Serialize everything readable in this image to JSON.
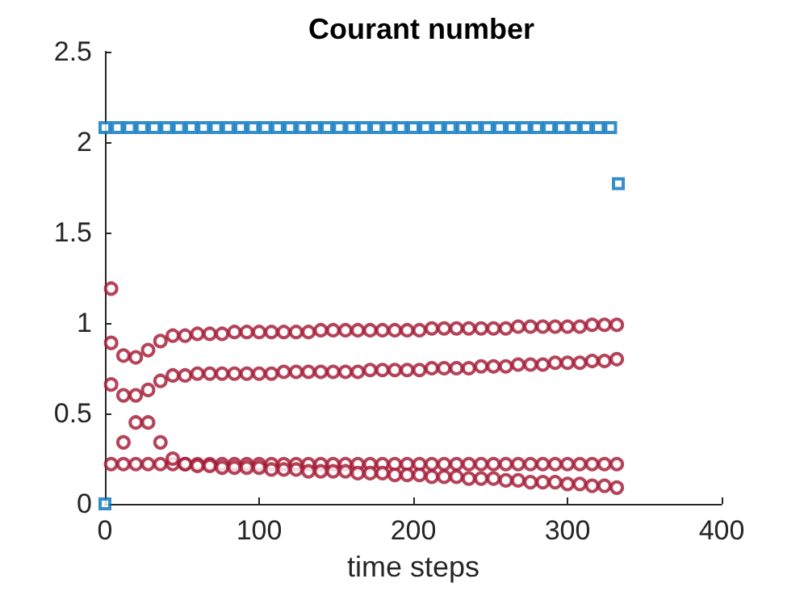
{
  "chart_data": {
    "type": "scatter",
    "title": "Courant number",
    "xlabel": "time steps",
    "x": [
      4,
      12,
      20,
      28,
      36,
      44,
      52,
      60,
      68,
      76,
      84,
      92,
      100,
      108,
      116,
      124,
      132,
      140,
      148,
      156,
      164,
      172,
      180,
      188,
      196,
      204,
      212,
      220,
      228,
      236,
      244,
      252,
      260,
      268,
      276,
      284,
      292,
      300,
      308,
      316,
      324,
      332
    ],
    "series": [
      {
        "color": "#0072bd",
        "marker": "square",
        "x": [
          0,
          8,
          16,
          24,
          32,
          40,
          48,
          56,
          64,
          72,
          80,
          88,
          96,
          104,
          112,
          120,
          128,
          136,
          144,
          152,
          160,
          168,
          176,
          184,
          192,
          200,
          208,
          216,
          224,
          232,
          240,
          248,
          256,
          264,
          272,
          280,
          288,
          296,
          304,
          312,
          320,
          328,
          333,
          0
        ],
        "values": [
          2.08,
          2.08,
          2.08,
          2.08,
          2.08,
          2.08,
          2.08,
          2.08,
          2.08,
          2.08,
          2.08,
          2.08,
          2.08,
          2.08,
          2.08,
          2.08,
          2.08,
          2.08,
          2.08,
          2.08,
          2.08,
          2.08,
          2.08,
          2.08,
          2.08,
          2.08,
          2.08,
          2.08,
          2.08,
          2.08,
          2.08,
          2.08,
          2.08,
          2.08,
          2.08,
          2.08,
          2.08,
          2.08,
          2.08,
          2.08,
          2.08,
          2.08,
          1.77,
          0
        ]
      },
      {
        "color": "#a2142f",
        "marker": "circle",
        "values": [
          0.89,
          0.82,
          0.81,
          0.85,
          0.9,
          0.93,
          0.93,
          0.94,
          0.94,
          0.94,
          0.95,
          0.95,
          0.95,
          0.95,
          0.95,
          0.95,
          0.95,
          0.96,
          0.96,
          0.96,
          0.96,
          0.96,
          0.96,
          0.96,
          0.96,
          0.96,
          0.97,
          0.97,
          0.97,
          0.97,
          0.97,
          0.97,
          0.97,
          0.98,
          0.98,
          0.98,
          0.98,
          0.98,
          0.98,
          0.99,
          0.99,
          0.99
        ]
      },
      {
        "color": "#a2142f",
        "marker": "circle",
        "values": [
          0.66,
          0.6,
          0.6,
          0.63,
          0.68,
          0.71,
          0.71,
          0.72,
          0.72,
          0.72,
          0.72,
          0.72,
          0.72,
          0.72,
          0.73,
          0.73,
          0.73,
          0.73,
          0.73,
          0.73,
          0.73,
          0.74,
          0.74,
          0.74,
          0.74,
          0.74,
          0.75,
          0.75,
          0.75,
          0.75,
          0.76,
          0.76,
          0.76,
          0.77,
          0.77,
          0.77,
          0.78,
          0.78,
          0.78,
          0.79,
          0.79,
          0.8
        ]
      },
      {
        "color": "#a2142f",
        "marker": "circle",
        "values": [
          0.22,
          0.22,
          0.22,
          0.22,
          0.22,
          0.22,
          0.22,
          0.22,
          0.22,
          0.22,
          0.22,
          0.22,
          0.22,
          0.22,
          0.22,
          0.22,
          0.22,
          0.22,
          0.22,
          0.22,
          0.22,
          0.22,
          0.22,
          0.22,
          0.22,
          0.22,
          0.22,
          0.22,
          0.22,
          0.22,
          0.22,
          0.22,
          0.22,
          0.22,
          0.22,
          0.22,
          0.22,
          0.22,
          0.22,
          0.22,
          0.22,
          0.22
        ]
      },
      {
        "color": "#a2142f",
        "marker": "circle",
        "values": [
          1.19,
          0.34,
          0.45,
          0.45,
          0.34,
          0.25,
          0.22,
          0.21,
          0.21,
          0.2,
          0.2,
          0.2,
          0.2,
          0.19,
          0.19,
          0.19,
          0.18,
          0.18,
          0.18,
          0.18,
          0.17,
          0.17,
          0.17,
          0.16,
          0.16,
          0.16,
          0.15,
          0.15,
          0.15,
          0.14,
          0.14,
          0.14,
          0.13,
          0.13,
          0.12,
          0.12,
          0.12,
          0.11,
          0.11,
          0.1,
          0.1,
          0.09
        ]
      }
    ],
    "xlim": [
      0,
      400
    ],
    "xticks": [
      0,
      100,
      200,
      300,
      400
    ],
    "ylim": [
      0,
      2.5
    ],
    "yticks": [
      0,
      0.5,
      1,
      1.5,
      2,
      2.5
    ]
  }
}
